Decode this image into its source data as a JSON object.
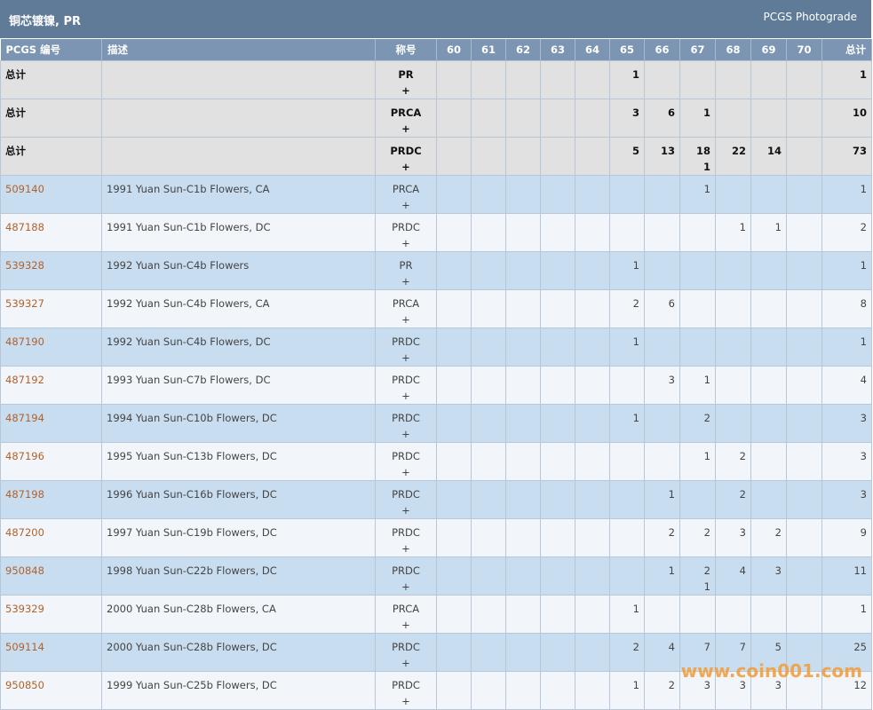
{
  "header": {
    "title": "铜芯镀镍, PR",
    "subtitle": "PCGS Photograde"
  },
  "table": {
    "columns": [
      "PCGS 编号",
      "描述",
      "称号",
      "60",
      "61",
      "62",
      "63",
      "64",
      "65",
      "66",
      "67",
      "68",
      "69",
      "70",
      "总计"
    ],
    "rows": [
      {
        "id": "总计",
        "description": null,
        "designation": [
          "PR",
          "+"
        ],
        "grades": [
          null,
          null,
          null,
          null,
          null,
          1,
          null,
          null,
          null,
          null,
          null
        ],
        "total": 1,
        "summary": true
      },
      {
        "id": "总计",
        "description": null,
        "designation": [
          "PRCA",
          "+"
        ],
        "grades": [
          null,
          null,
          null,
          null,
          null,
          3,
          6,
          1,
          null,
          null,
          null
        ],
        "total": 10,
        "summary": true
      },
      {
        "id": "总计",
        "description": null,
        "designation": [
          "PRDC",
          "+"
        ],
        "grades": [
          null,
          null,
          null,
          null,
          null,
          5,
          13,
          [
            "18",
            "1"
          ],
          22,
          14,
          null
        ],
        "total": 73,
        "summary": true
      },
      {
        "id": "509140",
        "description": "1991 Yuan Sun-C1b Flowers, CA",
        "designation": [
          "PRCA",
          "+"
        ],
        "grades": [
          null,
          null,
          null,
          null,
          null,
          null,
          null,
          1,
          null,
          null,
          null
        ],
        "total": 1
      },
      {
        "id": "487188",
        "description": "1991 Yuan Sun-C1b Flowers, DC",
        "designation": [
          "PRDC",
          "+"
        ],
        "grades": [
          null,
          null,
          null,
          null,
          null,
          null,
          null,
          null,
          1,
          1,
          null
        ],
        "total": 2
      },
      {
        "id": "539328",
        "description": "1992 Yuan Sun-C4b Flowers",
        "designation": [
          "PR",
          "+"
        ],
        "grades": [
          null,
          null,
          null,
          null,
          null,
          1,
          null,
          null,
          null,
          null,
          null
        ],
        "total": 1
      },
      {
        "id": "539327",
        "description": "1992 Yuan Sun-C4b Flowers, CA",
        "designation": [
          "PRCA",
          "+"
        ],
        "grades": [
          null,
          null,
          null,
          null,
          null,
          2,
          6,
          null,
          null,
          null,
          null
        ],
        "total": 8
      },
      {
        "id": "487190",
        "description": "1992 Yuan Sun-C4b Flowers, DC",
        "designation": [
          "PRDC",
          "+"
        ],
        "grades": [
          null,
          null,
          null,
          null,
          null,
          1,
          null,
          null,
          null,
          null,
          null
        ],
        "total": 1
      },
      {
        "id": "487192",
        "description": "1993 Yuan Sun-C7b Flowers, DC",
        "designation": [
          "PRDC",
          "+"
        ],
        "grades": [
          null,
          null,
          null,
          null,
          null,
          null,
          3,
          1,
          null,
          null,
          null
        ],
        "total": 4
      },
      {
        "id": "487194",
        "description": "1994 Yuan Sun-C10b Flowers, DC",
        "designation": [
          "PRDC",
          "+"
        ],
        "grades": [
          null,
          null,
          null,
          null,
          null,
          1,
          null,
          2,
          null,
          null,
          null
        ],
        "total": 3
      },
      {
        "id": "487196",
        "description": "1995 Yuan Sun-C13b Flowers, DC",
        "designation": [
          "PRDC",
          "+"
        ],
        "grades": [
          null,
          null,
          null,
          null,
          null,
          null,
          null,
          1,
          2,
          null,
          null
        ],
        "total": 3
      },
      {
        "id": "487198",
        "description": "1996 Yuan Sun-C16b Flowers, DC",
        "designation": [
          "PRDC",
          "+"
        ],
        "grades": [
          null,
          null,
          null,
          null,
          null,
          null,
          1,
          null,
          2,
          null,
          null
        ],
        "total": 3
      },
      {
        "id": "487200",
        "description": "1997 Yuan Sun-C19b Flowers, DC",
        "designation": [
          "PRDC",
          "+"
        ],
        "grades": [
          null,
          null,
          null,
          null,
          null,
          null,
          2,
          2,
          3,
          2,
          null
        ],
        "total": 9
      },
      {
        "id": "950848",
        "description": "1998 Yuan Sun-C22b Flowers, DC",
        "designation": [
          "PRDC",
          "+"
        ],
        "grades": [
          null,
          null,
          null,
          null,
          null,
          null,
          1,
          [
            "2",
            "1"
          ],
          4,
          3,
          null
        ],
        "total": 11
      },
      {
        "id": "539329",
        "description": "2000 Yuan Sun-C28b Flowers, CA",
        "designation": [
          "PRCA",
          "+"
        ],
        "grades": [
          null,
          null,
          null,
          null,
          null,
          1,
          null,
          null,
          null,
          null,
          null
        ],
        "total": 1
      },
      {
        "id": "509114",
        "description": "2000 Yuan Sun-C28b Flowers, DC",
        "designation": [
          "PRDC",
          "+"
        ],
        "grades": [
          null,
          null,
          null,
          null,
          null,
          2,
          4,
          7,
          7,
          5,
          null
        ],
        "total": 25
      },
      {
        "id": "950850",
        "description": "1999 Yuan Sun-C25b Flowers, DC",
        "designation": [
          "PRDC",
          "+"
        ],
        "grades": [
          null,
          null,
          null,
          null,
          null,
          1,
          2,
          3,
          3,
          3,
          null
        ],
        "total": 12
      }
    ]
  },
  "watermark": "www.coin001.com"
}
